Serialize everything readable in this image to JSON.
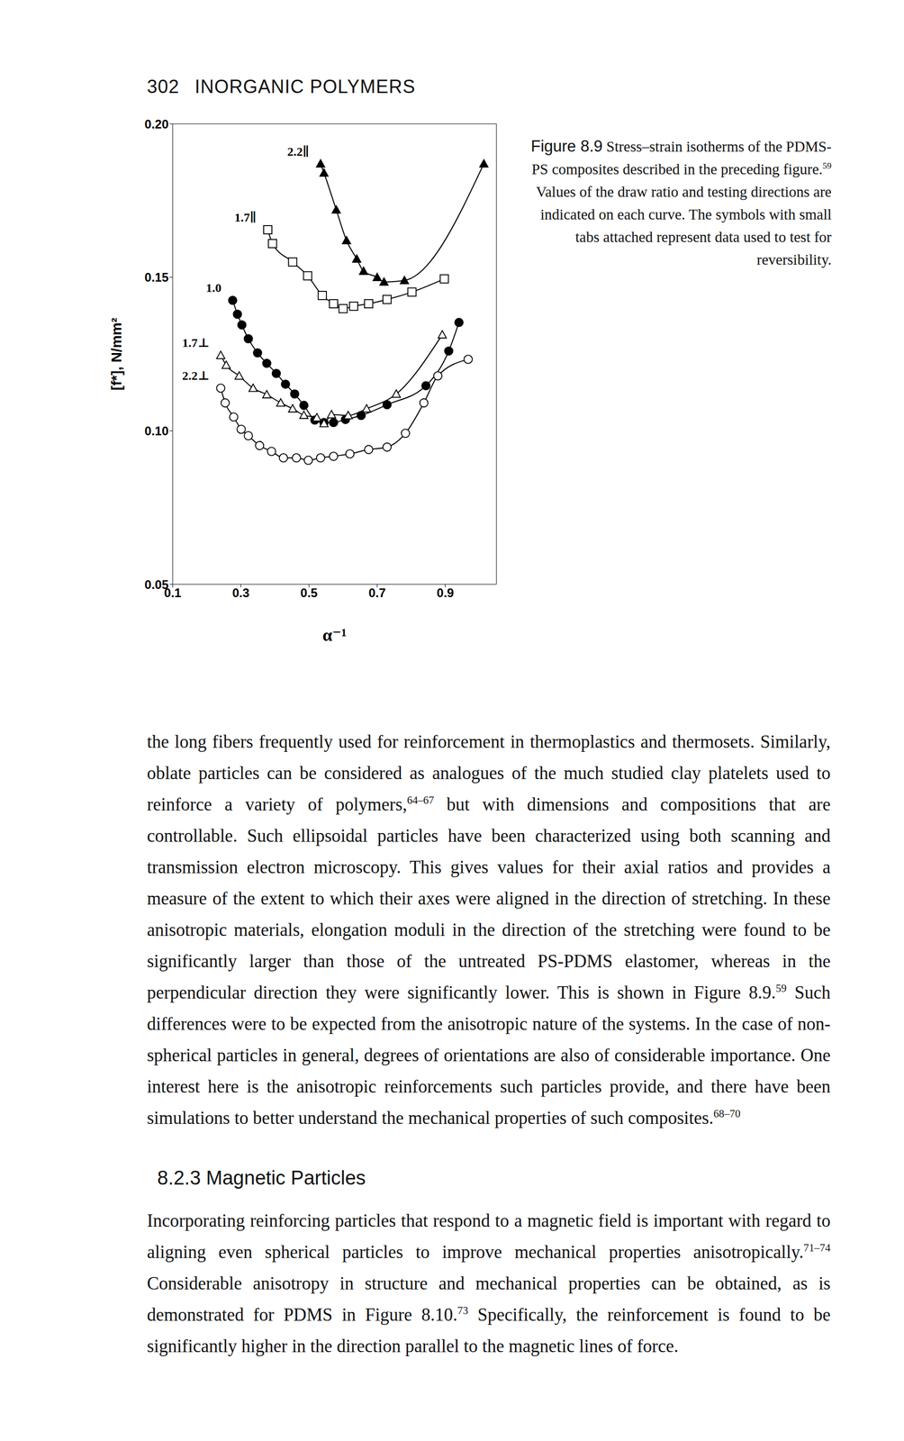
{
  "header": {
    "page_number": 302,
    "running_title": "INORGANIC POLYMERS"
  },
  "chart_data": {
    "type": "scatter",
    "x_label": "α⁻¹",
    "y_label": "[f*], N/mm²",
    "xlim": [
      0.1,
      1.05
    ],
    "xticks": [
      0.1,
      0.3,
      0.5,
      0.7,
      0.9
    ],
    "ylim": [
      0.05,
      0.2
    ],
    "yticks": [
      {
        "value": 0.05,
        "label": "0.05"
      },
      {
        "value": 0.1,
        "label": "0.10"
      },
      {
        "value": 0.15,
        "label": "0.15"
      },
      {
        "value": 0.2,
        "label": "0.20"
      }
    ],
    "grid": false,
    "series": [
      {
        "name": "2.2∥",
        "marker": "triangle_filled",
        "color": "#000000",
        "x": [
          0.534,
          0.544,
          0.58,
          0.61,
          0.64,
          0.66,
          0.7,
          0.72,
          0.78,
          1.013
        ],
        "values": [
          0.187,
          0.184,
          0.172,
          0.162,
          0.156,
          0.152,
          0.15,
          0.1485,
          0.149,
          0.187
        ]
      },
      {
        "name": "1.7∥",
        "marker": "square_open",
        "color": "#000000",
        "x": [
          0.379,
          0.393,
          0.452,
          0.496,
          0.539,
          0.572,
          0.6,
          0.631,
          0.675,
          0.729,
          0.802,
          0.897
        ],
        "values": [
          0.1655,
          0.161,
          0.155,
          0.1505,
          0.1441,
          0.1414,
          0.1398,
          0.1406,
          0.1414,
          0.1428,
          0.1452,
          0.1495
        ]
      },
      {
        "name": "1.0",
        "marker": "circle_filled",
        "color": "#000000",
        "x": [
          0.276,
          0.29,
          0.303,
          0.322,
          0.349,
          0.376,
          0.404,
          0.431,
          0.458,
          0.485,
          0.517,
          0.544,
          0.572,
          0.607,
          0.653,
          0.729,
          0.843,
          0.91,
          0.94
        ],
        "values": [
          0.1425,
          0.138,
          0.1345,
          0.13,
          0.1254,
          0.122,
          0.1187,
          0.1152,
          0.112,
          0.1083,
          0.1035,
          0.1027,
          0.1027,
          0.1037,
          0.105,
          0.1085,
          0.1147,
          0.126,
          0.1353
        ]
      },
      {
        "name": "1.7⊥",
        "marker": "triangle_open",
        "color": "#000000",
        "x": [
          0.241,
          0.257,
          0.295,
          0.336,
          0.376,
          0.417,
          0.452,
          0.485,
          0.523,
          0.544,
          0.566,
          0.615,
          0.669,
          0.756,
          0.891
        ],
        "values": [
          0.1246,
          0.1214,
          0.1179,
          0.1139,
          0.1118,
          0.1091,
          0.1072,
          0.1051,
          0.1043,
          0.1024,
          0.1053,
          0.105,
          0.1072,
          0.112,
          0.1313
        ]
      },
      {
        "name": "2.2⊥",
        "marker": "circle_open",
        "color": "#000000",
        "x": [
          0.241,
          0.254,
          0.279,
          0.301,
          0.322,
          0.355,
          0.39,
          0.425,
          0.463,
          0.498,
          0.534,
          0.572,
          0.62,
          0.675,
          0.729,
          0.783,
          0.837,
          0.878,
          0.967
        ],
        "values": [
          0.1139,
          0.1091,
          0.1045,
          0.1005,
          0.0984,
          0.0952,
          0.0933,
          0.0912,
          0.0912,
          0.0904,
          0.0912,
          0.0917,
          0.0925,
          0.0939,
          0.0947,
          0.0992,
          0.1091,
          0.1179,
          0.1233
        ]
      }
    ]
  },
  "caption": {
    "label": "Figure 8.9",
    "text": [
      " Stress–strain isotherms of the PDMS-PS composites described in the preceding figure.",
      {
        "sup": "59"
      },
      " Values of the draw ratio and testing directions are indicated on each curve. The symbols with small tabs attached represent data used to test for reversibility."
    ]
  },
  "body": [
    [
      "the long fibers frequently used for reinforcement in thermoplastics and thermosets. Similarly, oblate particles can be considered as analogues of the much studied clay platelets used to reinforce a variety of polymers,",
      {
        "sup": "64–67"
      },
      " but with dimensions and compositions that are controllable. Such ellipsoidal particles have been characterized using both scanning and transmission electron microscopy. This gives values for their axial ratios and provides a measure of the extent to which their axes were aligned in the direction of stretching. In these anisotropic materials, elongation moduli in the direction of the stretching were found to be significantly larger than those of the untreated PS-PDMS elastomer, whereas in the perpendicular direction they were significantly lower. This is shown in Figure 8.9.",
      {
        "sup": "59"
      },
      " Such differences were to be expected from the anisotropic nature of the systems. In the case of non-spherical particles in general, degrees of orientations are also of considerable importance. One interest here is the anisotropic reinforcements such particles provide, and there have been simulations to better understand the mechanical properties of such composites.",
      {
        "sup": "68–70"
      }
    ]
  ],
  "section": {
    "heading": "8.2.3 Magnetic Particles",
    "paragraphs": [
      [
        "Incorporating reinforcing particles that respond to a magnetic field is important with regard to aligning even spherical particles to improve mechanical properties anisotropically.",
        {
          "sup": "71–74"
        },
        " Considerable anisotropy in structure and mechanical properties can be obtained, as is demonstrated for PDMS in Figure 8.10.",
        {
          "sup": "73"
        },
        " Specifically, the reinforcement is found to be significantly higher in the direction parallel to the magnetic lines of force."
      ]
    ]
  }
}
